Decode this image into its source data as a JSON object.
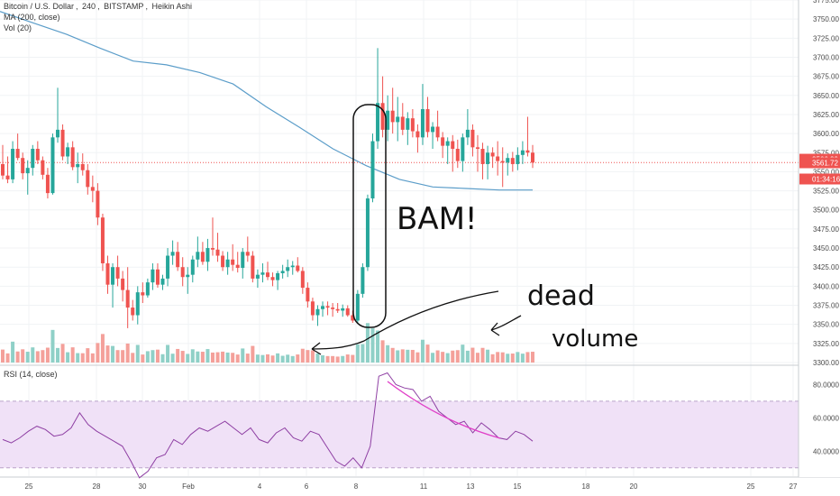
{
  "legend": {
    "symbol": "Bitcoin / U.S. Dollar",
    "interval": "240",
    "exchange": "BITSTAMP",
    "chart_style": "Heikin Ashi",
    "ma_label": "MA (200, close)",
    "vol_label": "Vol (20)",
    "rsi_label": "RSI (14, close)"
  },
  "price_axis": {
    "ticks": [
      "3775.00",
      "3750.00",
      "3725.00",
      "3700.00",
      "3675.00",
      "3650.00",
      "3625.00",
      "3600.00",
      "3575.00",
      "3550.00",
      "3525.00",
      "3500.00",
      "3475.00",
      "3450.00",
      "3425.00",
      "3400.00",
      "3375.00",
      "3350.00",
      "3325.00",
      "3300.00"
    ],
    "ma_price": "3566.39",
    "close_price": "3561.72",
    "countdown": "01:34:16"
  },
  "rsi_axis": {
    "ticks": [
      "80.0000",
      "60.0000",
      "40.0000"
    ]
  },
  "time_axis": {
    "labels": [
      "25",
      "28",
      "30",
      "Feb",
      "4",
      "6",
      "8",
      "11",
      "13",
      "15",
      "18",
      "20",
      "25",
      "27"
    ]
  },
  "annotations": {
    "bam": "BAM!",
    "dead": "dead",
    "volume": "volume"
  },
  "colors": {
    "up": "#26a69a",
    "down": "#ef5350",
    "vol_up": "#8fd0c7",
    "vol_down": "#f4a09a",
    "ma": "#5b9dc9",
    "rsi_line": "#8e3fa3",
    "rsi_band": "#f0e1f7",
    "trend": "#e040c8"
  },
  "chart_data": [
    {
      "type": "candlestick",
      "title": "Bitcoin / U.S. Dollar, 240, BITSTAMP, Heikin Ashi",
      "ylim": [
        3300,
        3775
      ],
      "candles": [
        [
          3560,
          3585,
          3540,
          3545
        ],
        [
          3545,
          3570,
          3535,
          3540
        ],
        [
          3540,
          3590,
          3535,
          3580
        ],
        [
          3580,
          3600,
          3565,
          3568
        ],
        [
          3568,
          3575,
          3540,
          3548
        ],
        [
          3548,
          3565,
          3520,
          3555
        ],
        [
          3555,
          3585,
          3545,
          3580
        ],
        [
          3580,
          3590,
          3560,
          3565
        ],
        [
          3565,
          3570,
          3540,
          3546
        ],
        [
          3546,
          3555,
          3515,
          3522
        ],
        [
          3522,
          3600,
          3520,
          3595
        ],
        [
          3595,
          3660,
          3588,
          3605
        ],
        [
          3605,
          3612,
          3565,
          3570
        ],
        [
          3570,
          3588,
          3560,
          3582
        ],
        [
          3582,
          3590,
          3552,
          3556
        ],
        [
          3556,
          3575,
          3535,
          3560
        ],
        [
          3560,
          3574,
          3545,
          3552
        ],
        [
          3552,
          3560,
          3520,
          3530
        ],
        [
          3530,
          3545,
          3510,
          3525
        ],
        [
          3525,
          3535,
          3480,
          3490
        ],
        [
          3490,
          3495,
          3420,
          3430
        ],
        [
          3430,
          3440,
          3390,
          3402
        ],
        [
          3402,
          3430,
          3372,
          3425
        ],
        [
          3425,
          3440,
          3400,
          3410
        ],
        [
          3410,
          3420,
          3380,
          3395
        ],
        [
          3395,
          3425,
          3345,
          3372
        ],
        [
          3372,
          3382,
          3355,
          3362
        ],
        [
          3362,
          3400,
          3350,
          3392
        ],
        [
          3392,
          3405,
          3378,
          3388
        ],
        [
          3388,
          3410,
          3385,
          3405
        ],
        [
          3405,
          3430,
          3395,
          3422
        ],
        [
          3422,
          3430,
          3398,
          3402
        ],
        [
          3402,
          3415,
          3395,
          3410
        ],
        [
          3410,
          3450,
          3400,
          3440
        ],
        [
          3440,
          3460,
          3428,
          3445
        ],
        [
          3445,
          3458,
          3420,
          3425
        ],
        [
          3425,
          3438,
          3400,
          3412
        ],
        [
          3412,
          3425,
          3390,
          3415
        ],
        [
          3415,
          3440,
          3405,
          3435
        ],
        [
          3435,
          3465,
          3425,
          3445
        ],
        [
          3445,
          3458,
          3428,
          3432
        ],
        [
          3432,
          3462,
          3420,
          3450
        ],
        [
          3450,
          3490,
          3440,
          3448
        ],
        [
          3448,
          3470,
          3432,
          3440
        ],
        [
          3440,
          3446,
          3420,
          3425
        ],
        [
          3425,
          3445,
          3415,
          3435
        ],
        [
          3435,
          3455,
          3420,
          3428
        ],
        [
          3428,
          3445,
          3418,
          3424
        ],
        [
          3424,
          3450,
          3410,
          3445
        ],
        [
          3445,
          3465,
          3432,
          3440
        ],
        [
          3440,
          3446,
          3405,
          3410
        ],
        [
          3410,
          3422,
          3398,
          3415
        ],
        [
          3415,
          3430,
          3405,
          3418
        ],
        [
          3418,
          3432,
          3408,
          3412
        ],
        [
          3412,
          3418,
          3400,
          3408
        ],
        [
          3408,
          3420,
          3395,
          3417
        ],
        [
          3417,
          3428,
          3410,
          3420
        ],
        [
          3420,
          3435,
          3412,
          3425
        ],
        [
          3425,
          3433,
          3415,
          3427
        ],
        [
          3427,
          3438,
          3418,
          3420
        ],
        [
          3420,
          3425,
          3390,
          3398
        ],
        [
          3398,
          3405,
          3372,
          3380
        ],
        [
          3380,
          3385,
          3355,
          3362
        ],
        [
          3362,
          3375,
          3348,
          3370
        ],
        [
          3370,
          3380,
          3360,
          3374
        ],
        [
          3374,
          3380,
          3362,
          3372
        ],
        [
          3372,
          3378,
          3360,
          3370
        ],
        [
          3370,
          3378,
          3365,
          3368
        ],
        [
          3368,
          3376,
          3360,
          3371
        ],
        [
          3371,
          3375,
          3360,
          3362
        ],
        [
          3362,
          3368,
          3352,
          3355
        ],
        [
          3355,
          3395,
          3352,
          3390
        ],
        [
          3390,
          3430,
          3385,
          3425
        ],
        [
          3425,
          3520,
          3420,
          3515
        ],
        [
          3515,
          3600,
          3510,
          3590
        ],
        [
          3590,
          3712,
          3580,
          3640
        ],
        [
          3640,
          3675,
          3595,
          3605
        ],
        [
          3605,
          3650,
          3590,
          3630
        ],
        [
          3630,
          3660,
          3600,
          3615
        ],
        [
          3615,
          3648,
          3590,
          3622
        ],
        [
          3622,
          3640,
          3598,
          3605
        ],
        [
          3605,
          3628,
          3585,
          3620
        ],
        [
          3620,
          3632,
          3595,
          3603
        ],
        [
          3603,
          3612,
          3575,
          3595
        ],
        [
          3595,
          3665,
          3585,
          3632
        ],
        [
          3632,
          3648,
          3595,
          3602
        ],
        [
          3602,
          3615,
          3580,
          3609
        ],
        [
          3609,
          3630,
          3590,
          3595
        ],
        [
          3595,
          3602,
          3568,
          3584
        ],
        [
          3584,
          3595,
          3560,
          3590
        ],
        [
          3590,
          3598,
          3550,
          3580
        ],
        [
          3580,
          3592,
          3555,
          3564
        ],
        [
          3564,
          3600,
          3550,
          3595
        ],
        [
          3595,
          3632,
          3585,
          3605
        ],
        [
          3605,
          3612,
          3570,
          3582
        ],
        [
          3582,
          3598,
          3550,
          3580
        ],
        [
          3580,
          3588,
          3540,
          3560
        ],
        [
          3560,
          3584,
          3540,
          3575
        ],
        [
          3575,
          3582,
          3555,
          3570
        ],
        [
          3570,
          3590,
          3545,
          3564
        ],
        [
          3564,
          3582,
          3530,
          3562
        ],
        [
          3562,
          3574,
          3545,
          3568
        ],
        [
          3568,
          3576,
          3550,
          3560
        ],
        [
          3560,
          3582,
          3552,
          3572
        ],
        [
          3572,
          3590,
          3560,
          3578
        ],
        [
          3578,
          3622,
          3570,
          3575
        ],
        [
          3575,
          3585,
          3555,
          3562
        ]
      ],
      "ma200": [
        3760,
        3745,
        3730,
        3712,
        3695,
        3690,
        3680,
        3665,
        3635,
        3608,
        3580,
        3558,
        3540,
        3530,
        3528,
        3526,
        3526
      ],
      "volume_ylim": [
        0,
        100
      ]
    },
    {
      "type": "line",
      "title": "RSI (14, close)",
      "ylim": [
        25,
        90
      ],
      "bands": [
        30,
        70
      ],
      "values": [
        47,
        45,
        48,
        52,
        55,
        53,
        49,
        50,
        54,
        63,
        56,
        52,
        49,
        46,
        43,
        34,
        24,
        28,
        36,
        38,
        47,
        44,
        50,
        54,
        52,
        55,
        58,
        54,
        50,
        54,
        47,
        45,
        51,
        54,
        48,
        46,
        52,
        50,
        42,
        34,
        31,
        36,
        30,
        43,
        85,
        87,
        80,
        78,
        77,
        70,
        73,
        64,
        60,
        56,
        58,
        51,
        57,
        53,
        48,
        47,
        52,
        50,
        46
      ]
    }
  ]
}
